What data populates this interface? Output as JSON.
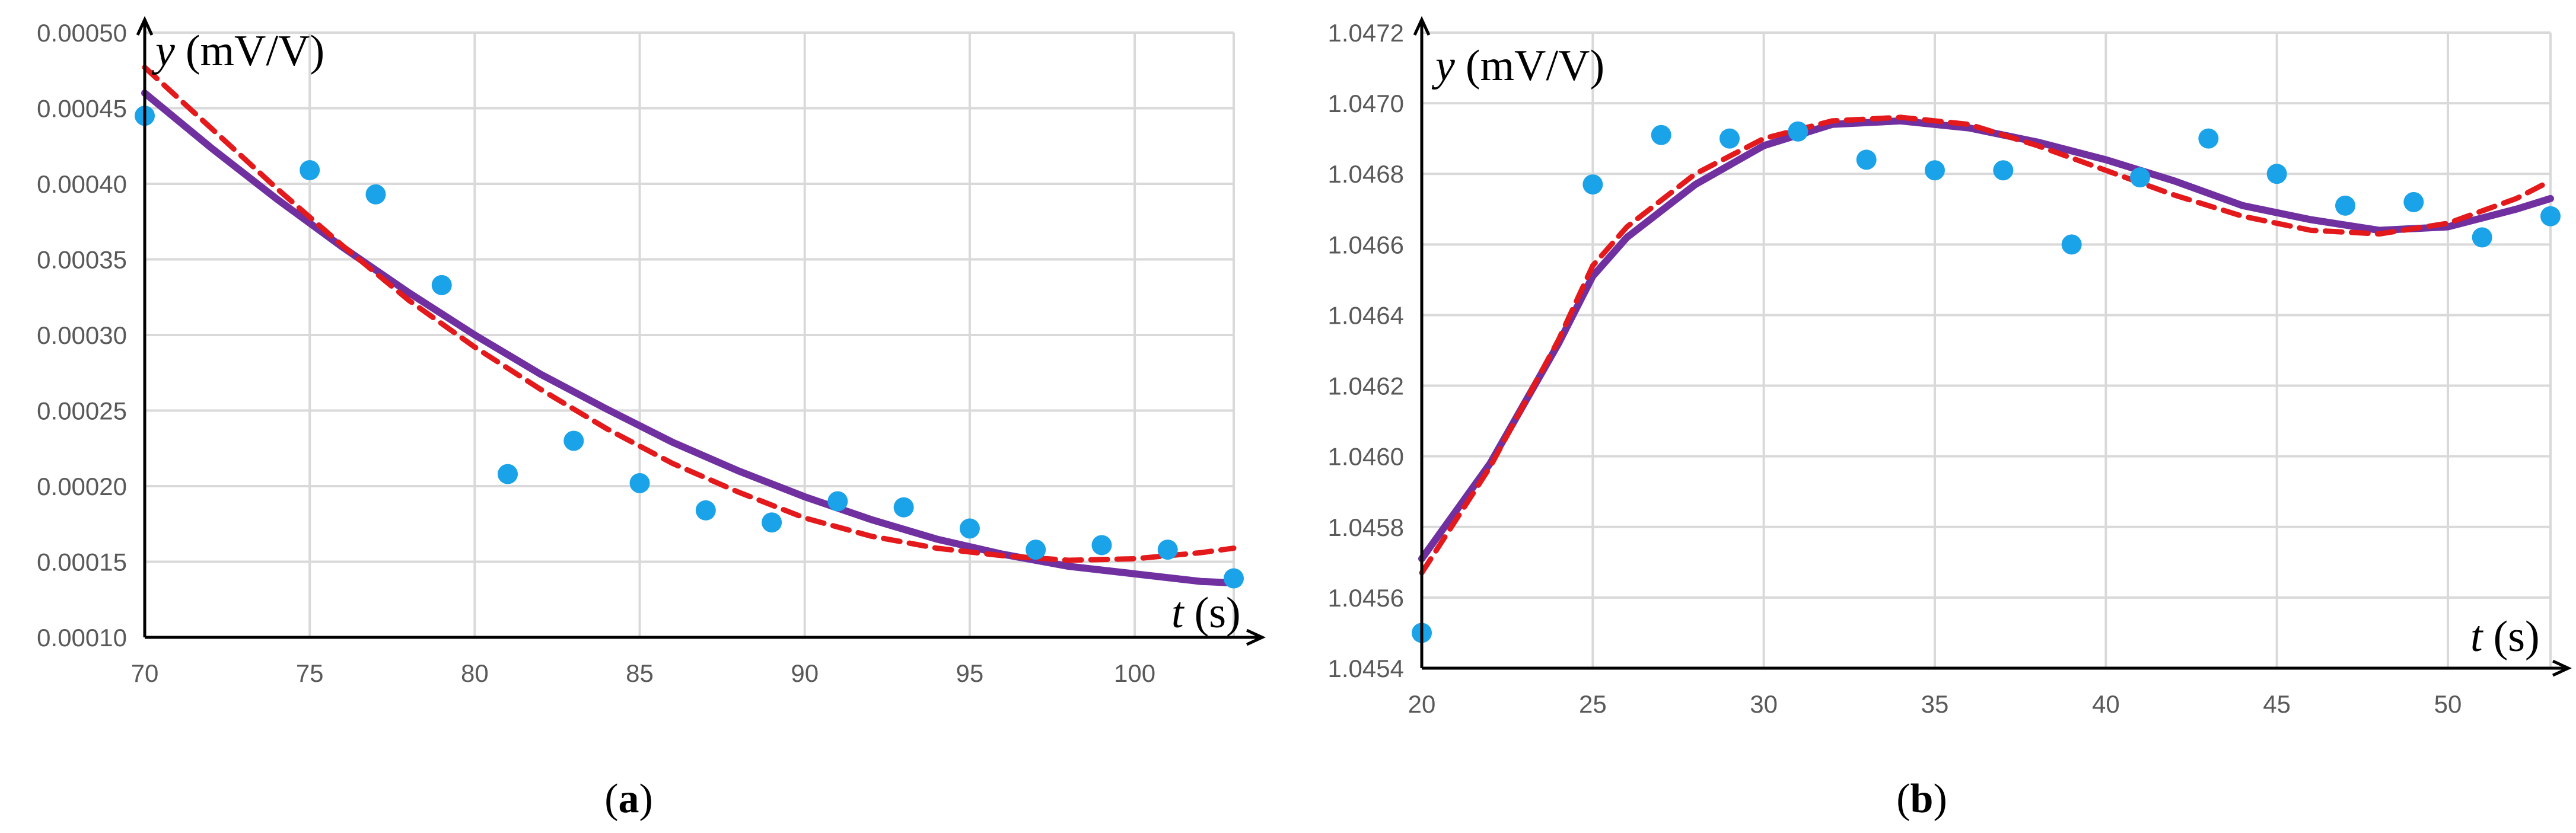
{
  "chart_data": [
    {
      "type": "scatter",
      "panel_label": "a",
      "ylabel_var": "y",
      "ylabel_unit": "(mV/V)",
      "xlabel_var": "t",
      "xlabel_unit": "(s)",
      "xlim": [
        70,
        103
      ],
      "ylim": [
        0.0001,
        0.0005
      ],
      "xticks": [
        70,
        75,
        80,
        85,
        90,
        95,
        100
      ],
      "xtick_labels": [
        "70",
        "75",
        "80",
        "85",
        "90",
        "95",
        "100"
      ],
      "yticks": [
        0.0001,
        0.00015,
        0.0002,
        0.00025,
        0.0003,
        0.00035,
        0.0004,
        0.00045,
        0.0005
      ],
      "ytick_labels": [
        "0.00010",
        "0.00015",
        "0.00020",
        "0.00025",
        "0.00030",
        "0.00035",
        "0.00040",
        "0.00045",
        "0.00050"
      ],
      "grid": true,
      "points": {
        "name": "measured",
        "color": "#1aa3e8",
        "x": [
          70,
          75,
          77,
          79,
          81,
          83,
          85,
          87,
          89,
          91,
          93,
          95,
          97,
          99,
          101,
          103
        ],
        "y": [
          0.000445,
          0.000409,
          0.000393,
          0.000333,
          0.000208,
          0.00023,
          0.000202,
          0.000184,
          0.000176,
          0.00019,
          0.000186,
          0.000172,
          0.000158,
          0.000161,
          0.000158,
          0.000139
        ]
      },
      "series": [
        {
          "name": "fit-solid",
          "color": "#7030a0",
          "style": "solid",
          "x": [
            70,
            72,
            74,
            76,
            78,
            80,
            82,
            84,
            86,
            88,
            90,
            92,
            94,
            96,
            98,
            100,
            102,
            103
          ],
          "y": [
            0.00046,
            0.000424,
            0.00039,
            0.000358,
            0.000328,
            0.0003,
            0.000274,
            0.000251,
            0.000229,
            0.00021,
            0.000193,
            0.000178,
            0.000165,
            0.000155,
            0.000147,
            0.000142,
            0.000137,
            0.000136
          ]
        },
        {
          "name": "fit-dashed",
          "color": "#e3191c",
          "style": "dashed",
          "x": [
            70,
            72,
            74,
            76,
            78,
            80,
            82,
            84,
            86,
            88,
            90,
            92,
            94,
            96,
            98,
            100,
            102,
            103
          ],
          "y": [
            0.000477,
            0.000437,
            0.000397,
            0.000359,
            0.000323,
            0.000292,
            0.000264,
            0.000238,
            0.000215,
            0.000196,
            0.000179,
            0.000167,
            0.000159,
            0.000154,
            0.000151,
            0.000152,
            0.000156,
            0.000159
          ]
        }
      ]
    },
    {
      "type": "scatter",
      "panel_label": "b",
      "ylabel_var": "y",
      "ylabel_unit": "(mV/V)",
      "xlabel_var": "t",
      "xlabel_unit": "(s)",
      "xlim": [
        20,
        53
      ],
      "ylim": [
        1.0454,
        1.0472
      ],
      "xticks": [
        20,
        25,
        30,
        35,
        40,
        45,
        50
      ],
      "xtick_labels": [
        "20",
        "25",
        "30",
        "35",
        "40",
        "45",
        "50"
      ],
      "yticks": [
        1.0454,
        1.0456,
        1.0458,
        1.046,
        1.0462,
        1.0464,
        1.0466,
        1.0468,
        1.047,
        1.0472
      ],
      "ytick_labels": [
        "1.0454",
        "1.0456",
        "1.0458",
        "1.0460",
        "1.0462",
        "1.0464",
        "1.0466",
        "1.0468",
        "1.0470",
        "1.0472"
      ],
      "grid": true,
      "points": {
        "name": "measured",
        "color": "#1aa3e8",
        "x": [
          20,
          25,
          27,
          29,
          31,
          33,
          35,
          37,
          39,
          41,
          43,
          45,
          47,
          49,
          51,
          53
        ],
        "y": [
          1.0455,
          1.04677,
          1.04691,
          1.0469,
          1.04692,
          1.04684,
          1.04681,
          1.04681,
          1.0466,
          1.04679,
          1.0469,
          1.0468,
          1.04671,
          1.04672,
          1.04662,
          1.04668
        ]
      },
      "series": [
        {
          "name": "fit-solid",
          "color": "#7030a0",
          "style": "solid",
          "x": [
            20,
            22,
            24,
            25,
            26,
            28,
            30,
            32,
            34,
            36,
            38,
            40,
            42,
            44,
            46,
            48,
            50,
            52,
            53
          ],
          "y": [
            1.04571,
            1.04598,
            1.04632,
            1.04651,
            1.04662,
            1.04677,
            1.04688,
            1.04694,
            1.04695,
            1.04693,
            1.04689,
            1.04684,
            1.04678,
            1.04671,
            1.04667,
            1.04664,
            1.04665,
            1.0467,
            1.04673
          ]
        },
        {
          "name": "fit-dashed",
          "color": "#e3191c",
          "style": "dashed",
          "x": [
            20,
            22,
            24,
            25,
            26,
            28,
            30,
            32,
            34,
            36,
            38,
            40,
            42,
            44,
            46,
            48,
            50,
            52,
            53
          ],
          "y": [
            1.04567,
            1.04597,
            1.04633,
            1.04654,
            1.04665,
            1.0468,
            1.0469,
            1.04695,
            1.04696,
            1.04694,
            1.04688,
            1.04681,
            1.04674,
            1.04668,
            1.04664,
            1.04663,
            1.04666,
            1.04673,
            1.04678
          ]
        }
      ]
    }
  ]
}
